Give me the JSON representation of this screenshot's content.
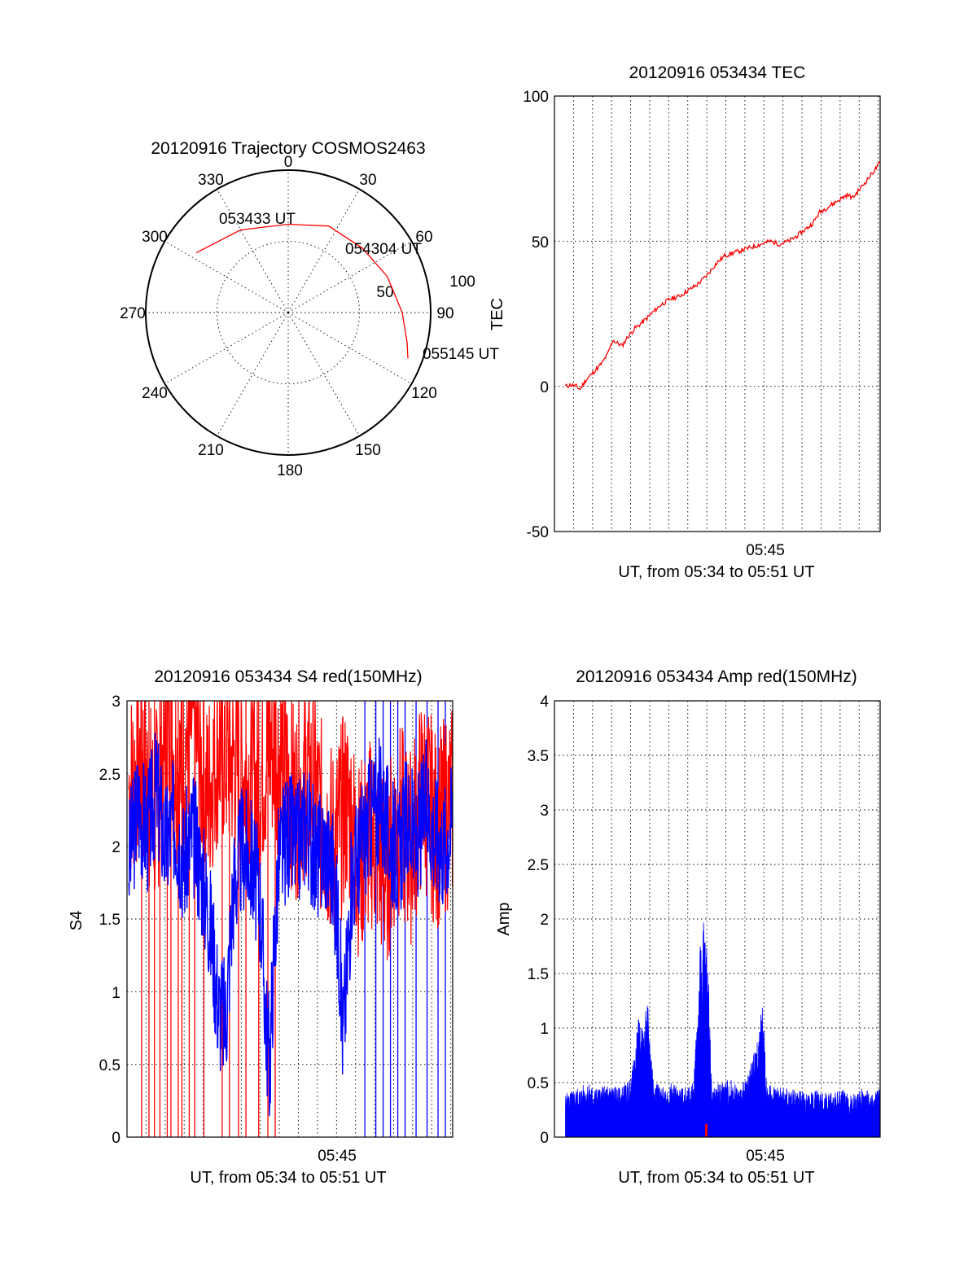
{
  "colors": {
    "red_channel": "#ff0000",
    "blue_channel": "#0000ff",
    "ink": "#000000",
    "background": "#ffffff"
  },
  "chart_data": [
    {
      "type": "polar",
      "title": "20120916 Trajectory COSMOS2463",
      "azimuth_labels": [
        "0",
        "30",
        "60",
        "90",
        "120",
        "150",
        "180",
        "210",
        "240",
        "270",
        "300",
        "330"
      ],
      "radial_labels": [
        "50",
        "100"
      ],
      "radial_max": 100,
      "grid": true,
      "series": [
        {
          "color": "red",
          "points": [
            {
              "azimuth": 303,
              "radius": 77
            },
            {
              "azimuth": 330,
              "radius": 67
            },
            {
              "azimuth": 0,
              "radius": 62
            },
            {
              "azimuth": 25,
              "radius": 67
            },
            {
              "azimuth": 49,
              "radius": 69
            },
            {
              "azimuth": 70,
              "radius": 74
            },
            {
              "azimuth": 90,
              "radius": 80
            },
            {
              "azimuth": 104,
              "radius": 86
            },
            {
              "azimuth": 111,
              "radius": 90
            }
          ]
        }
      ],
      "annotations": [
        {
          "text": "053433 UT",
          "azimuth": 310,
          "radius": 80
        },
        {
          "text": "054304 UT",
          "azimuth": 50,
          "radius": 75
        },
        {
          "text": "055145 UT",
          "azimuth": 108,
          "radius": 100
        }
      ]
    },
    {
      "type": "line",
      "title": "20120916 053434 TEC",
      "xlabel": "UT, from 05:34 to 05:51 UT",
      "ylabel": "TEC",
      "x_ticks": [
        "05:45"
      ],
      "x_tick_positions_min": [
        45
      ],
      "xlim_min": [
        33.2,
        51
      ],
      "ylim": [
        -50,
        100
      ],
      "y_ticks": [
        -50,
        0,
        50,
        100
      ],
      "grid": true,
      "series": [
        {
          "color": "red",
          "x_min": [
            33.8,
            34.1,
            34.4,
            34.6,
            34.9,
            35.2,
            35.5,
            35.8,
            36.1,
            36.4,
            36.6,
            36.9,
            37.2,
            37.6,
            38.0,
            38.5,
            39.0,
            39.5,
            40.0,
            40.5,
            41.0,
            41.5,
            42.0,
            42.5,
            43.0,
            43.5,
            44.0,
            44.5,
            45.0,
            45.5,
            46.0,
            46.5,
            46.9,
            47.3,
            47.7,
            48.2,
            48.7,
            49.2,
            49.5,
            49.9,
            50.4,
            51.0
          ],
          "values": [
            0,
            0.5,
            0,
            -1,
            2,
            4,
            6,
            8,
            11,
            16,
            15,
            14,
            17,
            20,
            22,
            25,
            28,
            30,
            31,
            33,
            35,
            38,
            42,
            45,
            46,
            47,
            48,
            49,
            50,
            49,
            50,
            52,
            54,
            56,
            60,
            62,
            64,
            66,
            65,
            68,
            72,
            77
          ]
        }
      ]
    },
    {
      "type": "line",
      "title": "20120916 053434 S4 red(150MHz)",
      "xlabel": "UT, from 05:34 to 05:51 UT",
      "ylabel": "S4",
      "x_ticks": [
        "05:45"
      ],
      "x_tick_positions_min": [
        45
      ],
      "xlim_min": [
        33.2,
        51
      ],
      "ylim": [
        0,
        3
      ],
      "y_ticks": [
        "0",
        "0.5",
        "1",
        "1.5",
        "2",
        "2.5",
        "3"
      ],
      "grid": true,
      "series": [
        {
          "color": "blue",
          "x_min": [
            33.3,
            33.8,
            34.3,
            34.8,
            35.3,
            35.8,
            36.3,
            36.8,
            37.3,
            37.6,
            37.9,
            38.2,
            38.6,
            39.0,
            39.5,
            40.0,
            40.5,
            40.8,
            41.0,
            41.2,
            41.5,
            42.0,
            42.5,
            43.0,
            43.5,
            44.0,
            44.5,
            44.8,
            45.0,
            45.2,
            45.5,
            46.0,
            46.5,
            47.0,
            47.5,
            48.0,
            48.5,
            49.0,
            49.5,
            50.0,
            50.5,
            51.0
          ],
          "values": [
            1.9,
            2.3,
            2.1,
            2.4,
            2.0,
            2.2,
            1.9,
            2.1,
            1.8,
            1.6,
            1.3,
            0.9,
            0.8,
            1.7,
            2.0,
            1.9,
            1.6,
            0.8,
            0.5,
            1.2,
            1.9,
            2.1,
            2.0,
            2.2,
            1.9,
            2.0,
            1.8,
            1.3,
            0.7,
            1.1,
            1.8,
            2.0,
            2.2,
            2.3,
            2.1,
            1.9,
            2.2,
            2.0,
            2.3,
            2.1,
            2.0,
            2.2
          ]
        },
        {
          "color": "red",
          "x_min": [
            33.3,
            34.0,
            34.7,
            35.4,
            36.1,
            36.8,
            37.5,
            38.2,
            38.9,
            39.6,
            40.3,
            41.0,
            41.7,
            42.4,
            43.1,
            43.8,
            44.5,
            45.2,
            45.9,
            46.6,
            47.3,
            48.0,
            48.7,
            49.4,
            50.1,
            51.0
          ],
          "values": [
            2.4,
            2.6,
            2.2,
            2.8,
            2.5,
            2.9,
            2.3,
            2.7,
            2.6,
            2.5,
            2.4,
            2.7,
            2.6,
            2.3,
            2.5,
            2.2,
            2.0,
            2.3,
            1.9,
            2.1,
            1.8,
            2.2,
            2.0,
            2.4,
            2.1,
            2.3
          ]
        }
      ],
      "dropouts": [
        {
          "color": "red",
          "x_min": [
            34.0,
            34.4,
            34.7,
            35.0,
            35.4,
            35.6,
            36.0,
            36.2,
            36.6,
            36.9,
            37.4,
            38.4,
            38.8,
            39.3,
            39.7,
            40.4,
            40.9,
            41.3
          ]
        },
        {
          "color": "blue",
          "x_min": [
            46.2,
            46.8,
            47.2,
            47.6,
            48.0,
            48.4,
            49.0,
            49.6,
            50.2,
            50.6
          ]
        }
      ]
    },
    {
      "type": "bar",
      "title": "20120916 053434 Amp red(150MHz)",
      "xlabel": "UT, from 05:34 to 05:51 UT",
      "ylabel": "Amp",
      "x_ticks": [
        "05:45"
      ],
      "x_tick_positions_min": [
        45
      ],
      "xlim_min": [
        33.2,
        51
      ],
      "ylim": [
        0,
        4
      ],
      "y_ticks": [
        "0",
        "0.5",
        "1",
        "1.5",
        "2",
        "2.5",
        "3",
        "3.5",
        "4"
      ],
      "grid": true,
      "series": [
        {
          "color": "blue",
          "x_min": [
            33.8,
            34.4,
            35.0,
            35.6,
            36.2,
            36.8,
            37.4,
            37.8,
            38.0,
            38.3,
            38.6,
            39.0,
            39.6,
            40.2,
            40.8,
            41.2,
            41.4,
            41.6,
            41.8,
            42.2,
            42.8,
            43.4,
            44.0,
            44.4,
            44.6,
            44.8,
            45.2,
            45.8,
            46.4,
            47.0,
            47.6,
            48.2,
            48.8,
            49.4,
            50.0,
            50.6,
            51.0
          ],
          "values": [
            0.4,
            0.45,
            0.5,
            0.45,
            0.5,
            0.45,
            0.55,
            1.1,
            1.0,
            1.25,
            0.6,
            0.45,
            0.5,
            0.45,
            0.5,
            1.9,
            2.0,
            1.7,
            0.45,
            0.5,
            0.55,
            0.45,
            0.7,
            1.0,
            1.3,
            0.45,
            0.5,
            0.45,
            0.45,
            0.4,
            0.45,
            0.4,
            0.45,
            0.4,
            0.45,
            0.4,
            0.45
          ]
        },
        {
          "color": "red",
          "x_min": [
            41.5
          ],
          "values": [
            0.12
          ]
        }
      ]
    }
  ]
}
